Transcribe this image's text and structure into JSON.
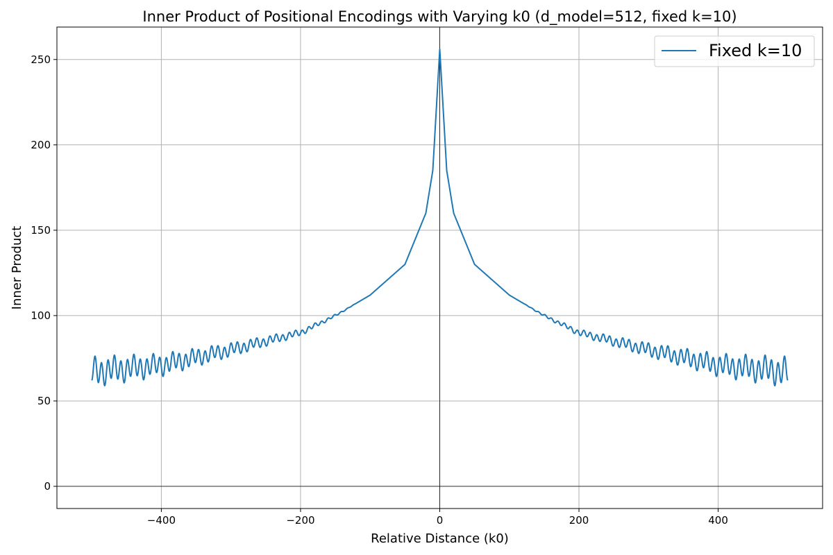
{
  "chart_data": {
    "type": "line",
    "title": "Inner Product of Positional Encodings with Varying k0 (d_model=512, fixed k=10)",
    "xlabel": "Relative Distance (k0)",
    "ylabel": "Inner Product",
    "xlim": [
      -550,
      550
    ],
    "ylim": [
      -13,
      269
    ],
    "x_ticks": [
      -400,
      -200,
      0,
      200,
      400
    ],
    "y_ticks": [
      0,
      50,
      100,
      150,
      200,
      250
    ],
    "x_tick_labels": [
      "−400",
      "−200",
      "0",
      "200",
      "400"
    ],
    "y_tick_labels": [
      "0",
      "50",
      "100",
      "150",
      "200",
      "250"
    ],
    "grid": true,
    "reference_lines": {
      "horizontal_at": 0,
      "vertical_at": 0
    },
    "legend": {
      "position": "top-right",
      "entries": [
        "Fixed k=10"
      ]
    },
    "series": [
      {
        "name": "Fixed k=10",
        "color": "#1f77b4",
        "x_range": [
          -500,
          500
        ],
        "peak": [
          0,
          256
        ],
        "sample_points": [
          [
            -500,
            67
          ],
          [
            -400,
            71
          ],
          [
            -300,
            80
          ],
          [
            -200,
            90
          ],
          [
            -150,
            100
          ],
          [
            -100,
            112
          ],
          [
            -50,
            130
          ],
          [
            -20,
            160
          ],
          [
            -10,
            185
          ],
          [
            0,
            256
          ],
          [
            10,
            185
          ],
          [
            20,
            160
          ],
          [
            50,
            130
          ],
          [
            100,
            112
          ],
          [
            150,
            100
          ],
          [
            200,
            90
          ],
          [
            300,
            80
          ],
          [
            400,
            71
          ],
          [
            500,
            67
          ]
        ],
        "envelope_endpoint_value": 66.5,
        "oscillation_amplitude_near_edges": 7,
        "oscillation_period": 9.3
      }
    ]
  }
}
